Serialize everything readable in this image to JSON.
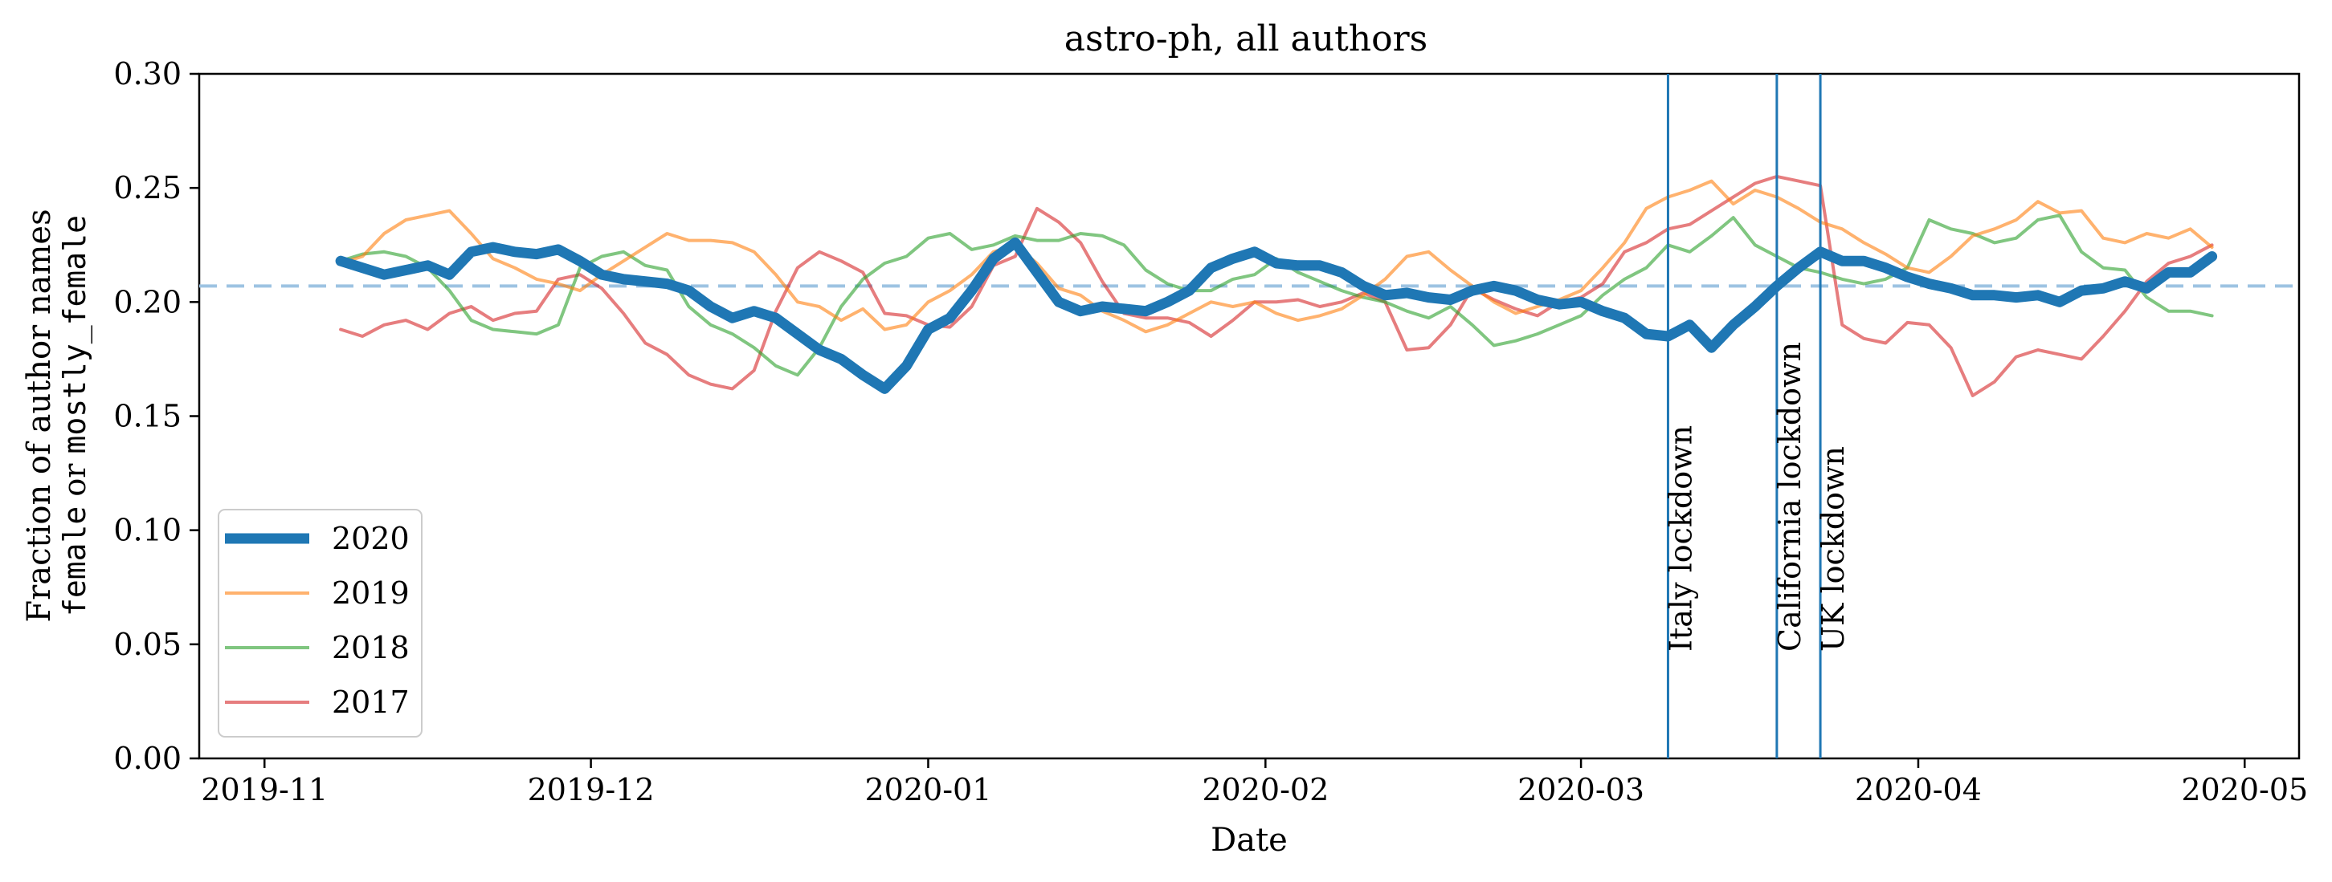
{
  "chart_data": {
    "type": "line",
    "title": "astro-ph, all authors",
    "xlabel": "Date",
    "ylabel_line1": "Fraction of author names",
    "ylabel_line2": [
      "female",
      " or ",
      "mostly_female"
    ],
    "x_ticks": [
      "2019-11",
      "2019-12",
      "2020-01",
      "2020-02",
      "2020-03",
      "2020-04",
      "2020-05"
    ],
    "y_ticks": [
      "0.00",
      "0.05",
      "0.10",
      "0.15",
      "0.20",
      "0.25",
      "0.30"
    ],
    "ylim": [
      0,
      0.3
    ],
    "xlim": [
      "2019-10-26",
      "2020-05-06"
    ],
    "grid": false,
    "legend_position": "lower-left",
    "reference_line": {
      "y": 0.207,
      "style": "dashed",
      "color": "#9dc3e2"
    },
    "events": [
      {
        "label": "Italy lockdown",
        "date": "2020-03-09",
        "color": "#1f77b4"
      },
      {
        "label": "California lockdown",
        "date": "2020-03-19",
        "color": "#1f77b4"
      },
      {
        "label": "UK lockdown",
        "date": "2020-03-23",
        "color": "#1f77b4"
      }
    ],
    "series": [
      {
        "name": "2020",
        "color": "#1f77b4",
        "x": [
          "2019-11-08",
          "2019-11-10",
          "2019-11-12",
          "2019-11-14",
          "2019-11-16",
          "2019-11-18",
          "2019-11-20",
          "2019-11-22",
          "2019-11-24",
          "2019-11-26",
          "2019-11-28",
          "2019-11-30",
          "2019-12-02",
          "2019-12-04",
          "2019-12-06",
          "2019-12-08",
          "2019-12-10",
          "2019-12-12",
          "2019-12-14",
          "2019-12-16",
          "2019-12-18",
          "2019-12-20",
          "2019-12-22",
          "2019-12-24",
          "2019-12-26",
          "2019-12-28",
          "2019-12-30",
          "2020-01-01",
          "2020-01-03",
          "2020-01-05",
          "2020-01-07",
          "2020-01-09",
          "2020-01-11",
          "2020-01-13",
          "2020-01-15",
          "2020-01-17",
          "2020-01-19",
          "2020-01-21",
          "2020-01-23",
          "2020-01-25",
          "2020-01-27",
          "2020-01-29",
          "2020-01-31",
          "2020-02-02",
          "2020-02-04",
          "2020-02-06",
          "2020-02-08",
          "2020-02-10",
          "2020-02-12",
          "2020-02-14",
          "2020-02-16",
          "2020-02-18",
          "2020-02-20",
          "2020-02-22",
          "2020-02-24",
          "2020-02-26",
          "2020-02-28",
          "2020-03-01",
          "2020-03-03",
          "2020-03-05",
          "2020-03-07",
          "2020-03-09",
          "2020-03-11",
          "2020-03-13",
          "2020-03-15",
          "2020-03-17",
          "2020-03-19",
          "2020-03-21",
          "2020-03-23",
          "2020-03-25",
          "2020-03-27",
          "2020-03-29",
          "2020-03-31",
          "2020-04-02",
          "2020-04-04",
          "2020-04-06",
          "2020-04-08",
          "2020-04-10",
          "2020-04-12",
          "2020-04-14",
          "2020-04-16",
          "2020-04-18",
          "2020-04-20",
          "2020-04-22",
          "2020-04-24",
          "2020-04-26",
          "2020-04-28"
        ],
        "values": [
          0.218,
          0.215,
          0.212,
          0.214,
          0.216,
          0.212,
          0.222,
          0.224,
          0.222,
          0.221,
          0.223,
          0.218,
          0.212,
          0.21,
          0.209,
          0.208,
          0.205,
          0.198,
          0.193,
          0.196,
          0.193,
          0.186,
          0.179,
          0.175,
          0.168,
          0.162,
          0.172,
          0.188,
          0.193,
          0.205,
          0.219,
          0.226,
          0.213,
          0.2,
          0.196,
          0.198,
          0.197,
          0.196,
          0.2,
          0.205,
          0.215,
          0.219,
          0.222,
          0.217,
          0.216,
          0.216,
          0.213,
          0.207,
          0.203,
          0.204,
          0.202,
          0.201,
          0.205,
          0.207,
          0.205,
          0.201,
          0.199,
          0.2,
          0.196,
          0.193,
          0.186,
          0.185,
          0.19,
          0.18,
          0.19,
          0.198,
          0.207,
          0.215,
          0.222,
          0.218,
          0.218,
          0.215,
          0.211,
          0.208,
          0.206,
          0.203,
          0.203,
          0.202,
          0.203,
          0.2,
          0.205,
          0.206,
          0.209,
          0.206,
          0.213,
          0.213,
          0.22
        ]
      },
      {
        "name": "2019",
        "color": "#ff7f0e",
        "x": [
          "2019-11-08",
          "2019-11-10",
          "2019-11-12",
          "2019-11-14",
          "2019-11-16",
          "2019-11-18",
          "2019-11-20",
          "2019-11-22",
          "2019-11-24",
          "2019-11-26",
          "2019-11-28",
          "2019-11-30",
          "2019-12-02",
          "2019-12-04",
          "2019-12-06",
          "2019-12-08",
          "2019-12-10",
          "2019-12-12",
          "2019-12-14",
          "2019-12-16",
          "2019-12-18",
          "2019-12-20",
          "2019-12-22",
          "2019-12-24",
          "2019-12-26",
          "2019-12-28",
          "2019-12-30",
          "2020-01-01",
          "2020-01-03",
          "2020-01-05",
          "2020-01-07",
          "2020-01-09",
          "2020-01-11",
          "2020-01-13",
          "2020-01-15",
          "2020-01-17",
          "2020-01-19",
          "2020-01-21",
          "2020-01-23",
          "2020-01-25",
          "2020-01-27",
          "2020-01-29",
          "2020-01-31",
          "2020-02-02",
          "2020-02-04",
          "2020-02-06",
          "2020-02-08",
          "2020-02-10",
          "2020-02-12",
          "2020-02-14",
          "2020-02-16",
          "2020-02-18",
          "2020-02-20",
          "2020-02-22",
          "2020-02-24",
          "2020-02-26",
          "2020-02-28",
          "2020-03-01",
          "2020-03-03",
          "2020-03-05",
          "2020-03-07",
          "2020-03-09",
          "2020-03-11",
          "2020-03-13",
          "2020-03-15",
          "2020-03-17",
          "2020-03-19",
          "2020-03-21",
          "2020-03-23",
          "2020-03-25",
          "2020-03-27",
          "2020-03-29",
          "2020-03-31",
          "2020-04-02",
          "2020-04-04",
          "2020-04-06",
          "2020-04-08",
          "2020-04-10",
          "2020-04-12",
          "2020-04-14",
          "2020-04-16",
          "2020-04-18",
          "2020-04-20",
          "2020-04-22",
          "2020-04-24",
          "2020-04-26",
          "2020-04-28"
        ],
        "values": [
          0.217,
          0.22,
          0.23,
          0.236,
          0.238,
          0.24,
          0.23,
          0.219,
          0.215,
          0.21,
          0.208,
          0.205,
          0.212,
          0.218,
          0.224,
          0.23,
          0.227,
          0.227,
          0.226,
          0.222,
          0.212,
          0.2,
          0.198,
          0.192,
          0.197,
          0.188,
          0.19,
          0.2,
          0.205,
          0.212,
          0.222,
          0.225,
          0.217,
          0.206,
          0.203,
          0.196,
          0.192,
          0.187,
          0.19,
          0.195,
          0.2,
          0.198,
          0.2,
          0.195,
          0.192,
          0.194,
          0.197,
          0.203,
          0.21,
          0.22,
          0.222,
          0.214,
          0.207,
          0.2,
          0.195,
          0.198,
          0.201,
          0.205,
          0.215,
          0.226,
          0.241,
          0.246,
          0.249,
          0.253,
          0.243,
          0.249,
          0.246,
          0.241,
          0.235,
          0.232,
          0.226,
          0.221,
          0.215,
          0.213,
          0.22,
          0.229,
          0.232,
          0.236,
          0.244,
          0.239,
          0.24,
          0.228,
          0.226,
          0.23,
          0.228,
          0.232,
          0.224
        ]
      },
      {
        "name": "2018",
        "color": "#2ca02c",
        "x": [
          "2019-11-08",
          "2019-11-10",
          "2019-11-12",
          "2019-11-14",
          "2019-11-16",
          "2019-11-18",
          "2019-11-20",
          "2019-11-22",
          "2019-11-24",
          "2019-11-26",
          "2019-11-28",
          "2019-11-30",
          "2019-12-02",
          "2019-12-04",
          "2019-12-06",
          "2019-12-08",
          "2019-12-10",
          "2019-12-12",
          "2019-12-14",
          "2019-12-16",
          "2019-12-18",
          "2019-12-20",
          "2019-12-22",
          "2019-12-24",
          "2019-12-26",
          "2019-12-28",
          "2019-12-30",
          "2020-01-01",
          "2020-01-03",
          "2020-01-05",
          "2020-01-07",
          "2020-01-09",
          "2020-01-11",
          "2020-01-13",
          "2020-01-15",
          "2020-01-17",
          "2020-01-19",
          "2020-01-21",
          "2020-01-23",
          "2020-01-25",
          "2020-01-27",
          "2020-01-29",
          "2020-01-31",
          "2020-02-02",
          "2020-02-04",
          "2020-02-06",
          "2020-02-08",
          "2020-02-10",
          "2020-02-12",
          "2020-02-14",
          "2020-02-16",
          "2020-02-18",
          "2020-02-20",
          "2020-02-22",
          "2020-02-24",
          "2020-02-26",
          "2020-02-28",
          "2020-03-01",
          "2020-03-03",
          "2020-03-05",
          "2020-03-07",
          "2020-03-09",
          "2020-03-11",
          "2020-03-13",
          "2020-03-15",
          "2020-03-17",
          "2020-03-19",
          "2020-03-21",
          "2020-03-23",
          "2020-03-25",
          "2020-03-27",
          "2020-03-29",
          "2020-03-31",
          "2020-04-02",
          "2020-04-04",
          "2020-04-06",
          "2020-04-08",
          "2020-04-10",
          "2020-04-12",
          "2020-04-14",
          "2020-04-16",
          "2020-04-18",
          "2020-04-20",
          "2020-04-22",
          "2020-04-24",
          "2020-04-26",
          "2020-04-28"
        ],
        "values": [
          0.218,
          0.221,
          0.222,
          0.22,
          0.215,
          0.205,
          0.192,
          0.188,
          0.187,
          0.186,
          0.19,
          0.215,
          0.22,
          0.222,
          0.216,
          0.214,
          0.198,
          0.19,
          0.186,
          0.18,
          0.172,
          0.168,
          0.18,
          0.198,
          0.21,
          0.217,
          0.22,
          0.228,
          0.23,
          0.223,
          0.225,
          0.229,
          0.227,
          0.227,
          0.23,
          0.229,
          0.225,
          0.214,
          0.208,
          0.205,
          0.205,
          0.21,
          0.212,
          0.219,
          0.213,
          0.209,
          0.205,
          0.202,
          0.2,
          0.196,
          0.193,
          0.198,
          0.19,
          0.181,
          0.183,
          0.186,
          0.19,
          0.194,
          0.203,
          0.21,
          0.215,
          0.225,
          0.222,
          0.229,
          0.237,
          0.225,
          0.22,
          0.215,
          0.213,
          0.21,
          0.208,
          0.21,
          0.215,
          0.236,
          0.232,
          0.23,
          0.226,
          0.228,
          0.236,
          0.238,
          0.222,
          0.215,
          0.214,
          0.202,
          0.196,
          0.196,
          0.194
        ]
      },
      {
        "name": "2017",
        "color": "#d62728",
        "x": [
          "2019-11-08",
          "2019-11-10",
          "2019-11-12",
          "2019-11-14",
          "2019-11-16",
          "2019-11-18",
          "2019-11-20",
          "2019-11-22",
          "2019-11-24",
          "2019-11-26",
          "2019-11-28",
          "2019-11-30",
          "2019-12-02",
          "2019-12-04",
          "2019-12-06",
          "2019-12-08",
          "2019-12-10",
          "2019-12-12",
          "2019-12-14",
          "2019-12-16",
          "2019-12-18",
          "2019-12-20",
          "2019-12-22",
          "2019-12-24",
          "2019-12-26",
          "2019-12-28",
          "2019-12-30",
          "2020-01-01",
          "2020-01-03",
          "2020-01-05",
          "2020-01-07",
          "2020-01-09",
          "2020-01-11",
          "2020-01-13",
          "2020-01-15",
          "2020-01-17",
          "2020-01-19",
          "2020-01-21",
          "2020-01-23",
          "2020-01-25",
          "2020-01-27",
          "2020-01-29",
          "2020-01-31",
          "2020-02-02",
          "2020-02-04",
          "2020-02-06",
          "2020-02-08",
          "2020-02-10",
          "2020-02-12",
          "2020-02-14",
          "2020-02-16",
          "2020-02-18",
          "2020-02-20",
          "2020-02-22",
          "2020-02-24",
          "2020-02-26",
          "2020-02-28",
          "2020-03-01",
          "2020-03-03",
          "2020-03-05",
          "2020-03-07",
          "2020-03-09",
          "2020-03-11",
          "2020-03-13",
          "2020-03-15",
          "2020-03-17",
          "2020-03-19",
          "2020-03-21",
          "2020-03-23",
          "2020-03-25",
          "2020-03-27",
          "2020-03-29",
          "2020-03-31",
          "2020-04-02",
          "2020-04-04",
          "2020-04-06",
          "2020-04-08",
          "2020-04-10",
          "2020-04-12",
          "2020-04-14",
          "2020-04-16",
          "2020-04-18",
          "2020-04-20",
          "2020-04-22",
          "2020-04-24",
          "2020-04-26",
          "2020-04-28"
        ],
        "values": [
          0.188,
          0.185,
          0.19,
          0.192,
          0.188,
          0.195,
          0.198,
          0.192,
          0.195,
          0.196,
          0.21,
          0.212,
          0.206,
          0.195,
          0.182,
          0.177,
          0.168,
          0.164,
          0.162,
          0.17,
          0.196,
          0.215,
          0.222,
          0.218,
          0.213,
          0.195,
          0.194,
          0.19,
          0.189,
          0.198,
          0.216,
          0.22,
          0.241,
          0.235,
          0.226,
          0.209,
          0.195,
          0.193,
          0.193,
          0.191,
          0.185,
          0.192,
          0.2,
          0.2,
          0.201,
          0.198,
          0.2,
          0.204,
          0.2,
          0.179,
          0.18,
          0.19,
          0.206,
          0.201,
          0.197,
          0.194,
          0.2,
          0.202,
          0.208,
          0.222,
          0.226,
          0.232,
          0.234,
          0.24,
          0.246,
          0.252,
          0.255,
          0.253,
          0.251,
          0.19,
          0.184,
          0.182,
          0.191,
          0.19,
          0.18,
          0.159,
          0.165,
          0.176,
          0.179,
          0.177,
          0.175,
          0.185,
          0.196,
          0.209,
          0.217,
          0.22,
          0.225
        ]
      }
    ]
  }
}
